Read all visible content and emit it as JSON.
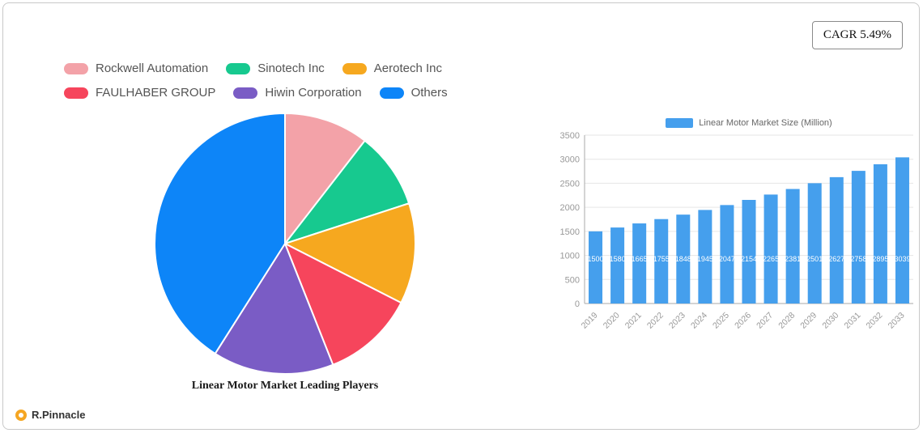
{
  "badge": {
    "label": "CAGR 5.49%"
  },
  "brand": {
    "label": "R.Pinnacle",
    "icon_color": "#f5a623"
  },
  "chart_data": [
    {
      "type": "pie",
      "title": "Linear Motor Market Leading Players",
      "labels": [
        "Rockwell Automation",
        "Sinotech Inc",
        "Aerotech Inc",
        "FAULHABER GROUP",
        "Hiwin Corporation",
        "Others"
      ],
      "values": [
        10.5,
        9.5,
        12.5,
        11.5,
        15,
        41
      ],
      "colors": [
        "#f3a2a8",
        "#17c98f",
        "#f6a81f",
        "#f6455c",
        "#7a5cc5",
        "#0d85f8"
      ],
      "legend_position": "top-left",
      "start_angle_deg": 0,
      "direction": "clockwise"
    },
    {
      "type": "bar",
      "legend": "Linear Motor Market Size (Million)",
      "categories": [
        "2019",
        "2020",
        "2021",
        "2022",
        "2023",
        "2024",
        "2025",
        "2026",
        "2027",
        "2028",
        "2029",
        "2030",
        "2031",
        "2032",
        "2033"
      ],
      "values": [
        1500,
        1580,
        1665,
        1755,
        1848,
        1945,
        2047,
        2154,
        2265,
        2381,
        2501,
        2627,
        2758,
        2895,
        3039
      ],
      "bar_color": "#459fed",
      "value_label_color": "#ffffff",
      "ylim": [
        0,
        3500
      ],
      "y_ticks": [
        0,
        500,
        1000,
        1500,
        2000,
        2500,
        3000,
        3500
      ],
      "grid": true,
      "x_label_rotation": -45,
      "legend_position": "top"
    }
  ]
}
